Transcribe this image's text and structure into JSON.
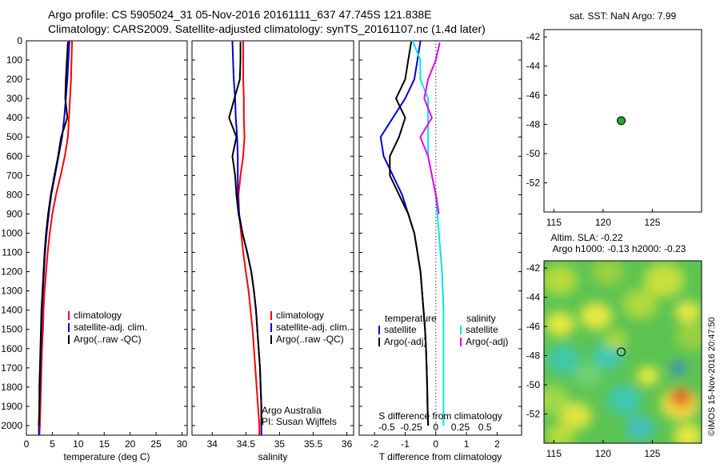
{
  "header": {
    "line1": "Argo profile: CS 5905024_31 05-Nov-2016 20161111_637 47.745S 121.838E",
    "line2": "Climatology: CARS2009. Satellite-adjusted climatology: synTS_20161107.nc (1.4d later)"
  },
  "credit": "©IMOS 15-Nov-2016 20:47:50",
  "colors": {
    "climatology": "#ff0000",
    "satellite": "#0000dd",
    "argo": "#000000",
    "sat_salinity": "#00e5ee",
    "argo_salinity": "#ee00ee"
  },
  "depth_axis": {
    "ylim": [
      0,
      2050
    ],
    "ticks": [
      "0",
      "100",
      "200",
      "300",
      "400",
      "500",
      "600",
      "700",
      "800",
      "900",
      "1000",
      "1100",
      "1200",
      "1300",
      "1400",
      "1500",
      "1600",
      "1700",
      "1800",
      "1900",
      "2000"
    ]
  },
  "chart_data": [
    {
      "type": "line",
      "xlabel": "temperature (deg C)",
      "ylabel": "",
      "xlim": [
        0,
        31
      ],
      "ylim": [
        0,
        2050
      ],
      "xticks": [
        "0",
        "5",
        "10",
        "15",
        "20",
        "25",
        "30"
      ],
      "legend": [
        "climatology",
        "satellite-adj. clim.",
        "Argo(..raw -QC)"
      ],
      "series": [
        {
          "name": "climatology",
          "x": [
            8.8,
            8.7,
            8.6,
            8.4,
            8.2,
            8.0,
            7.4,
            6.6,
            5.7,
            5.0,
            4.5,
            4.1,
            3.8,
            3.5,
            3.3,
            3.2,
            3.0,
            2.9,
            2.8,
            2.7,
            2.6,
            2.5
          ],
          "y": [
            0,
            100,
            200,
            300,
            400,
            500,
            600,
            700,
            800,
            900,
            1000,
            1100,
            1200,
            1300,
            1400,
            1500,
            1600,
            1700,
            1800,
            1900,
            2000,
            2050
          ]
        },
        {
          "name": "satellite-adj. clim.",
          "x": [
            8.3,
            8.1,
            7.9,
            7.6,
            7.3,
            6.9,
            6.2,
            5.5,
            4.8,
            4.3,
            3.9,
            3.6,
            3.4,
            3.2,
            3.0,
            2.9,
            2.8,
            2.7,
            2.6,
            2.5,
            2.4,
            2.4
          ],
          "y": [
            0,
            100,
            200,
            300,
            400,
            500,
            600,
            700,
            800,
            900,
            1000,
            1100,
            1200,
            1300,
            1400,
            1500,
            1600,
            1700,
            1800,
            1900,
            2000,
            2050
          ]
        },
        {
          "name": "Argo(..raw -QC)",
          "x": [
            8.0,
            7.8,
            7.6,
            7.5,
            7.9,
            6.7,
            6.1,
            5.4,
            4.7,
            4.2,
            3.8,
            3.5,
            3.3,
            3.1,
            2.9,
            2.8,
            2.7,
            2.6,
            2.5,
            2.5,
            2.4
          ],
          "y": [
            5,
            100,
            200,
            300,
            400,
            500,
            600,
            700,
            800,
            900,
            1000,
            1100,
            1200,
            1300,
            1400,
            1500,
            1600,
            1700,
            1800,
            1900,
            2000
          ]
        }
      ]
    },
    {
      "type": "line",
      "xlabel": "salinity",
      "ylabel": "",
      "xlim": [
        33.7,
        36.1
      ],
      "ylim": [
        0,
        2050
      ],
      "xticks": [
        "34",
        "34.5",
        "35",
        "35.5",
        "36"
      ],
      "legend": [
        "climatology",
        "satellite-adj. clim.",
        "Argo(..raw -QC)"
      ],
      "annotations": [
        "Argo Australia",
        "PI: Susan Wijffels"
      ],
      "series": [
        {
          "name": "climatology",
          "x": [
            34.46,
            34.46,
            34.46,
            34.47,
            34.47,
            34.48,
            34.46,
            34.42,
            34.39,
            34.4,
            34.43,
            34.46,
            34.5,
            34.54,
            34.57,
            34.6,
            34.62,
            34.64,
            34.66,
            34.68,
            34.7,
            34.7
          ],
          "y": [
            0,
            100,
            200,
            300,
            400,
            500,
            600,
            700,
            800,
            900,
            1000,
            1100,
            1200,
            1300,
            1400,
            1500,
            1600,
            1700,
            1800,
            1900,
            2000,
            2050
          ]
        },
        {
          "name": "satellite-adj. clim.",
          "x": [
            34.3,
            34.31,
            34.32,
            34.34,
            34.35,
            34.37,
            34.38,
            34.38,
            34.38,
            34.4,
            34.45,
            34.52,
            34.58,
            34.62,
            34.65,
            34.67,
            34.69,
            34.71,
            34.72,
            34.73,
            34.73,
            34.73
          ],
          "y": [
            0,
            100,
            200,
            300,
            400,
            500,
            600,
            700,
            800,
            900,
            1000,
            1100,
            1200,
            1300,
            1400,
            1500,
            1600,
            1700,
            1800,
            1900,
            2000,
            2050
          ]
        },
        {
          "name": "Argo(..raw -QC)",
          "x": [
            34.42,
            34.42,
            34.41,
            34.33,
            34.25,
            34.36,
            34.3,
            34.34,
            34.36,
            34.39,
            34.45,
            34.52,
            34.58,
            34.62,
            34.65,
            34.67,
            34.69,
            34.71,
            34.72,
            34.73,
            34.73
          ],
          "y": [
            5,
            100,
            200,
            300,
            400,
            500,
            600,
            700,
            800,
            900,
            1000,
            1100,
            1200,
            1300,
            1400,
            1500,
            1600,
            1700,
            1800,
            1900,
            2000
          ]
        }
      ]
    },
    {
      "type": "line",
      "xlabel": "T difference from climatology",
      "xlabel_top": "S difference from climatology",
      "xlim": [
        -2.5,
        2.8
      ],
      "ylim": [
        0,
        2050
      ],
      "xticks": [
        "-2",
        "-1",
        "0",
        "1",
        "2"
      ],
      "xticks_top": [
        "-0.5",
        "-0.25",
        "0",
        "0.25",
        "0.5"
      ],
      "legend_temperature_title": "temperature",
      "legend_salinity_title": "salinity",
      "legend": [
        "satellite",
        "Argo(-adj)",
        "satellite",
        "Argo(-adj)"
      ],
      "series": [
        {
          "name": "temperature satellite",
          "x": [
            -0.5,
            -0.6,
            -0.7,
            -1.0,
            -1.4,
            -1.8,
            -1.7,
            -1.4,
            -1.1,
            -0.9,
            -0.7,
            -0.6,
            -0.5,
            -0.45,
            -0.4,
            -0.35,
            -0.32,
            -0.3,
            -0.28,
            -0.27,
            -0.25
          ],
          "y": [
            0,
            100,
            200,
            300,
            400,
            500,
            600,
            700,
            800,
            900,
            1000,
            1100,
            1200,
            1300,
            1400,
            1500,
            1600,
            1700,
            1800,
            1900,
            2000
          ]
        },
        {
          "name": "temperature Argo(-adj)",
          "x": [
            -0.8,
            -0.9,
            -1.0,
            -1.3,
            -1.0,
            -1.2,
            -1.5,
            -1.5,
            -1.2,
            -0.9,
            -0.7,
            -0.6,
            -0.5,
            -0.45,
            -0.4,
            -0.35,
            -0.32,
            -0.3,
            -0.28,
            -0.27,
            -0.25
          ],
          "y": [
            5,
            100,
            200,
            300,
            400,
            500,
            600,
            700,
            800,
            900,
            1000,
            1100,
            1200,
            1300,
            1400,
            1500,
            1600,
            1700,
            1800,
            1900,
            2000
          ]
        },
        {
          "name": "salinity satellite",
          "x": [
            -0.3,
            -0.2,
            -0.2,
            -0.1,
            -0.1,
            -0.1,
            -0.1,
            -0.05,
            0.0,
            0.02,
            0.04,
            0.06,
            0.08,
            0.09,
            0.1,
            0.1,
            0.1,
            0.1,
            0.1,
            0.1,
            0.1
          ],
          "y": [
            0,
            100,
            200,
            300,
            400,
            500,
            600,
            700,
            800,
            900,
            1000,
            1100,
            1200,
            1300,
            1400,
            1500,
            1600,
            1700,
            1800,
            1900,
            2000
          ]
        },
        {
          "name": "salinity Argo(-adj)",
          "x": [
            0.05,
            0.0,
            -0.1,
            -0.15,
            -0.05,
            -0.2,
            -0.1,
            -0.05,
            0.0,
            0.02,
            0.04
          ],
          "y": [
            10,
            100,
            200,
            300,
            400,
            500,
            600,
            700,
            800,
            850,
            900
          ]
        }
      ]
    },
    {
      "type": "scatter",
      "title": "sat. SST: NaN Argo: 7.99",
      "xlim": [
        114,
        130
      ],
      "ylim": [
        -54,
        -41.5
      ],
      "xticks": [
        "115",
        "120",
        "125"
      ],
      "yticks": [
        "-42",
        "-44",
        "-46",
        "-48",
        "-50",
        "-52"
      ],
      "points": [
        {
          "x": 121.838,
          "y": -47.745
        }
      ]
    },
    {
      "type": "heatmap",
      "title_line1": "Altim. SLA: -0.22",
      "title_line2": "Argo h1000: -0.13 h2000: -0.23",
      "xlim": [
        114,
        130
      ],
      "ylim": [
        -54,
        -41.5
      ],
      "xticks": [
        "115",
        "120",
        "125"
      ],
      "yticks": [
        "-42",
        "-44",
        "-46",
        "-48",
        "-50",
        "-52"
      ],
      "points": [
        {
          "x": 121.838,
          "y": -47.745
        }
      ]
    }
  ]
}
